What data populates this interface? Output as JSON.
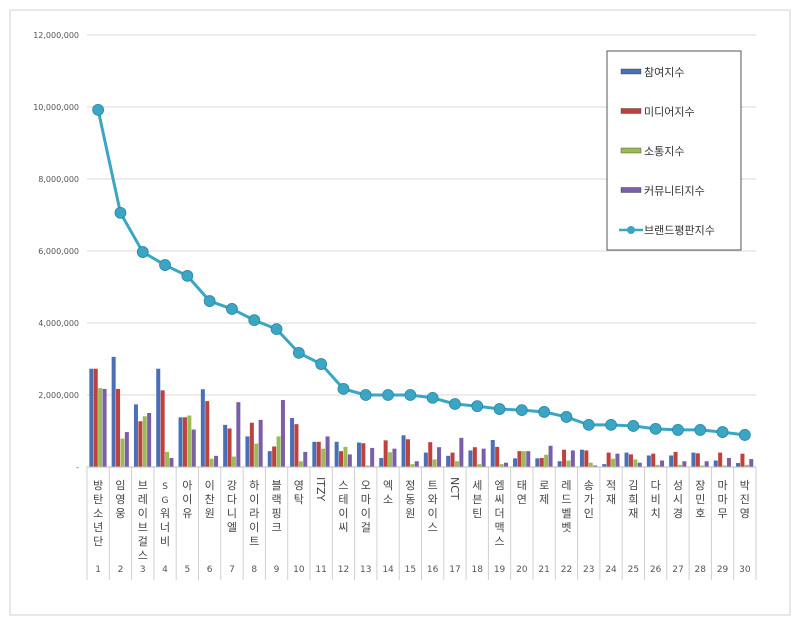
{
  "chart_data": {
    "type": "bar+line",
    "title": "",
    "xlabel": "",
    "ylabel": "",
    "ylim": [
      0,
      12000000
    ],
    "yticks": [
      "-",
      "2,000,000",
      "4,000,000",
      "6,000,000",
      "8,000,000",
      "10,000,000",
      "12,000,000"
    ],
    "grid": true,
    "legend_position": "top-right",
    "categories": [
      "방탄소년단",
      "임영웅",
      "브레이브걸스",
      "SG워너비",
      "아이유",
      "이찬원",
      "강다니엘",
      "하이라이트",
      "블랙핑크",
      "영탁",
      "ITZY",
      "스테이씨",
      "오마이걸",
      "엑소",
      "정동원",
      "트와이스",
      "NCT",
      "세븐틴",
      "엠씨더맥스",
      "태연",
      "로제",
      "레드벨벳",
      "송가인",
      "적재",
      "김희재",
      "다비치",
      "성시경",
      "장민호",
      "마마무",
      "박진영"
    ],
    "ranks": [
      "1",
      "2",
      "3",
      "4",
      "5",
      "6",
      "7",
      "8",
      "9",
      "10",
      "11",
      "12",
      "13",
      "14",
      "15",
      "16",
      "17",
      "18",
      "19",
      "20",
      "21",
      "22",
      "23",
      "24",
      "25",
      "26",
      "27",
      "28",
      "29",
      "30"
    ],
    "series": [
      {
        "name": "참여지수",
        "type": "bar",
        "color": "#4a6fb5",
        "values": [
          2730000,
          3060000,
          1740000,
          2730000,
          1380000,
          2160000,
          1170000,
          850000,
          440000,
          1360000,
          700000,
          700000,
          680000,
          250000,
          880000,
          400000,
          310000,
          460000,
          750000,
          240000,
          240000,
          160000,
          480000,
          80000,
          400000,
          320000,
          320000,
          400000,
          180000,
          110000
        ]
      },
      {
        "name": "미디어지수",
        "type": "bar",
        "color": "#c0403c",
        "values": [
          2730000,
          2170000,
          1270000,
          2130000,
          1380000,
          1830000,
          1070000,
          1230000,
          570000,
          1190000,
          700000,
          440000,
          660000,
          740000,
          770000,
          690000,
          400000,
          550000,
          560000,
          440000,
          250000,
          480000,
          460000,
          400000,
          350000,
          370000,
          420000,
          380000,
          400000,
          370000
        ]
      },
      {
        "name": "소통지수",
        "type": "bar",
        "color": "#9bbb59",
        "values": [
          2190000,
          790000,
          1410000,
          420000,
          1430000,
          230000,
          290000,
          650000,
          850000,
          160000,
          510000,
          560000,
          40000,
          410000,
          80000,
          210000,
          160000,
          80000,
          80000,
          440000,
          340000,
          180000,
          120000,
          230000,
          210000,
          60000,
          60000,
          40000,
          40000,
          60000
        ]
      },
      {
        "name": "커뮤니티지수",
        "type": "bar",
        "color": "#7b5ea7",
        "values": [
          2170000,
          970000,
          1500000,
          250000,
          1040000,
          310000,
          1800000,
          1310000,
          1860000,
          420000,
          850000,
          350000,
          530000,
          510000,
          160000,
          550000,
          810000,
          510000,
          120000,
          440000,
          590000,
          460000,
          40000,
          370000,
          120000,
          180000,
          160000,
          160000,
          250000,
          220000
        ]
      },
      {
        "name": "브랜드평판지수",
        "type": "line",
        "color": "#3aa6c4",
        "values": [
          9920000,
          7060000,
          5970000,
          5610000,
          5310000,
          4610000,
          4390000,
          4080000,
          3830000,
          3170000,
          2860000,
          2170000,
          2000000,
          2000000,
          2000000,
          1920000,
          1750000,
          1690000,
          1610000,
          1580000,
          1530000,
          1390000,
          1170000,
          1170000,
          1140000,
          1060000,
          1030000,
          1030000,
          970000,
          890000
        ]
      }
    ]
  }
}
